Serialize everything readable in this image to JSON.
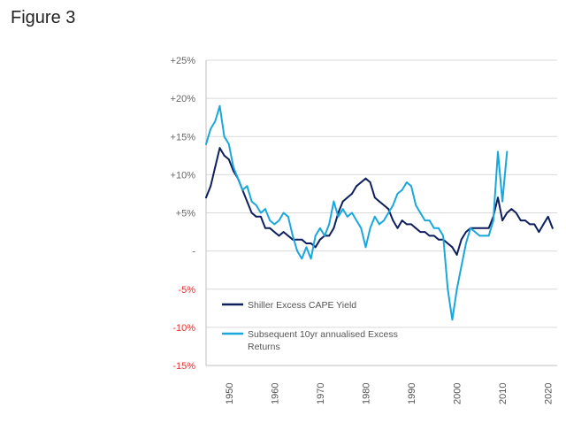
{
  "figure_label": "Figure 3",
  "chart_data": {
    "type": "line",
    "title": "",
    "xlabel": "",
    "ylabel": "",
    "xlim": [
      1945,
      2022
    ],
    "ylim": [
      -15,
      25
    ],
    "yticks": [
      25,
      20,
      15,
      10,
      5,
      0,
      -5,
      -10,
      -15
    ],
    "ytick_labels": [
      "+25%",
      "+20%",
      "+15%",
      "+10%",
      "+5%",
      "-",
      "-5%",
      "-10%",
      "-15%"
    ],
    "xticks": [
      1950,
      1960,
      1970,
      1980,
      1990,
      2000,
      2010,
      2020
    ],
    "xtick_labels": [
      "1950",
      "1960",
      "1970",
      "1980",
      "1990",
      "2000",
      "2010",
      "2020"
    ],
    "grid": true,
    "legend_position": "bottom-left",
    "colors": {
      "positive_tick": "#666666",
      "negative_tick": "#e03030",
      "grid": "#d9d9d9"
    },
    "series": [
      {
        "name": "Shiller Excess CAPE Yield",
        "color": "#0d1f5c",
        "x": [
          1945,
          1946,
          1947,
          1948,
          1949,
          1950,
          1951,
          1952,
          1953,
          1954,
          1955,
          1956,
          1957,
          1958,
          1959,
          1960,
          1961,
          1962,
          1963,
          1964,
          1965,
          1966,
          1967,
          1968,
          1969,
          1970,
          1971,
          1972,
          1973,
          1974,
          1975,
          1976,
          1977,
          1978,
          1979,
          1980,
          1981,
          1982,
          1983,
          1984,
          1985,
          1986,
          1987,
          1988,
          1989,
          1990,
          1991,
          1992,
          1993,
          1994,
          1995,
          1996,
          1997,
          1998,
          1999,
          2000,
          2001,
          2002,
          2003,
          2004,
          2005,
          2006,
          2007,
          2008,
          2009,
          2010,
          2011,
          2012,
          2013,
          2014,
          2015,
          2016,
          2017,
          2018,
          2019,
          2020,
          2021
        ],
        "values": [
          7,
          8.5,
          11,
          13.5,
          12.5,
          12,
          10.5,
          9.5,
          8,
          6.5,
          5,
          4.5,
          4.5,
          3,
          3,
          2.5,
          2,
          2.5,
          2,
          1.5,
          1.5,
          1.5,
          1,
          1,
          0.5,
          1.5,
          2,
          2,
          3,
          5,
          6.5,
          7,
          7.5,
          8.5,
          9,
          9.5,
          9,
          7,
          6.5,
          6,
          5.5,
          4,
          3,
          4,
          3.5,
          3.5,
          3,
          2.5,
          2.5,
          2,
          2,
          1.5,
          1.5,
          1,
          0.5,
          -0.5,
          1.5,
          2.5,
          3,
          3,
          3,
          3,
          3,
          4.5,
          7,
          4,
          5,
          5.5,
          5,
          4,
          4,
          3.5,
          3.5,
          2.5,
          3.5,
          4.5,
          3
        ]
      },
      {
        "name": "Subsequent 10yr annualised Excess Returns",
        "color": "#19a7dc",
        "x": [
          1945,
          1946,
          1947,
          1948,
          1949,
          1950,
          1951,
          1952,
          1953,
          1954,
          1955,
          1956,
          1957,
          1958,
          1959,
          1960,
          1961,
          1962,
          1963,
          1964,
          1965,
          1966,
          1967,
          1968,
          1969,
          1970,
          1971,
          1972,
          1973,
          1974,
          1975,
          1976,
          1977,
          1978,
          1979,
          1980,
          1981,
          1982,
          1983,
          1984,
          1985,
          1986,
          1987,
          1988,
          1989,
          1990,
          1991,
          1992,
          1993,
          1994,
          1995,
          1996,
          1997,
          1998,
          1999,
          2000,
          2001,
          2002,
          2003,
          2004,
          2005,
          2006,
          2007,
          2008,
          2009,
          2010,
          2011
        ],
        "values": [
          14,
          16,
          17,
          19,
          15,
          14,
          11,
          9.5,
          8,
          8.5,
          6.5,
          6,
          5,
          5.5,
          4,
          3.5,
          4,
          5,
          4.5,
          2,
          0,
          -1,
          0.5,
          -1,
          2,
          3,
          2,
          3.5,
          6.5,
          4.5,
          5.5,
          4.5,
          5,
          4,
          3,
          0.5,
          3,
          4.5,
          3.5,
          4,
          5,
          6,
          7.5,
          8,
          9,
          8.5,
          6,
          5,
          4,
          4,
          3,
          3,
          2,
          -5,
          -9,
          -5,
          -2,
          1,
          3,
          2.5,
          2,
          2,
          2,
          4,
          13,
          6.5,
          13
        ]
      }
    ]
  }
}
